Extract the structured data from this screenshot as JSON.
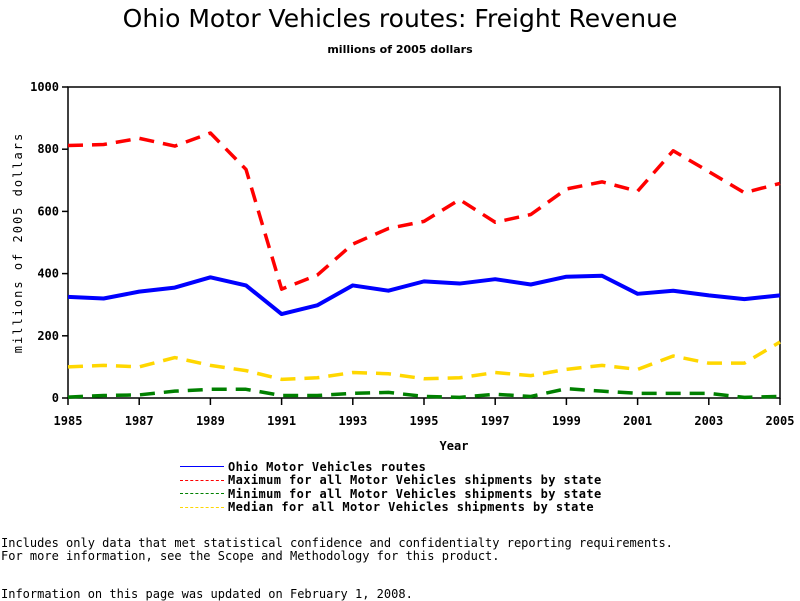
{
  "chart_data": {
    "type": "line",
    "title": "Ohio Motor Vehicles routes: Freight Revenue",
    "subtitle": "millions of 2005 dollars",
    "xlabel": "Year",
    "ylabel": "millions of 2005 dollars",
    "xlim": [
      1985,
      2005
    ],
    "ylim": [
      0,
      1000
    ],
    "x_tick_labels": [
      "1985",
      "1987",
      "1989",
      "1991",
      "1993",
      "1995",
      "1997",
      "1999",
      "2001",
      "2003",
      "2005"
    ],
    "y_tick_labels": [
      "0",
      "200",
      "400",
      "600",
      "800",
      "1000"
    ],
    "x": [
      1985,
      1986,
      1987,
      1988,
      1989,
      1990,
      1991,
      1992,
      1993,
      1994,
      1995,
      1996,
      1997,
      1998,
      1999,
      2000,
      2001,
      2002,
      2003,
      2004,
      2005
    ],
    "grid": false,
    "legend_position": "bottom",
    "series": [
      {
        "name": "Ohio Motor Vehicles routes",
        "color": "#0000ff",
        "style": "solid",
        "values": [
          325,
          320,
          342,
          355,
          388,
          362,
          270,
          298,
          362,
          345,
          375,
          368,
          382,
          365,
          390,
          393,
          335,
          345,
          330,
          318,
          330
        ]
      },
      {
        "name": "Maximum for all Motor Vehicles shipments by state",
        "color": "#ff0000",
        "style": "dashed",
        "values": [
          812,
          815,
          835,
          810,
          852,
          735,
          350,
          395,
          495,
          545,
          568,
          638,
          565,
          590,
          672,
          695,
          665,
          795,
          728,
          660,
          690
        ]
      },
      {
        "name": "Minimum for all Motor Vehicles shipments by state",
        "color": "#008000",
        "style": "dashed",
        "values": [
          3,
          8,
          10,
          22,
          28,
          28,
          8,
          8,
          15,
          18,
          5,
          2,
          12,
          5,
          30,
          22,
          15,
          15,
          15,
          2,
          5
        ]
      },
      {
        "name": "Median for all Motor Vehicles shipments by state",
        "color": "#ffd700",
        "style": "dashed",
        "values": [
          100,
          105,
          100,
          130,
          105,
          88,
          60,
          65,
          82,
          78,
          62,
          65,
          82,
          72,
          92,
          105,
          92,
          135,
          112,
          112,
          180
        ]
      }
    ]
  },
  "notes": {
    "line1": "Includes only data that met statistical confidence and confidentialty reporting requirements.",
    "line2": "For more information, see the Scope and Methodology for this product.",
    "updated": "Information on this page was updated on February 1, 2008."
  }
}
